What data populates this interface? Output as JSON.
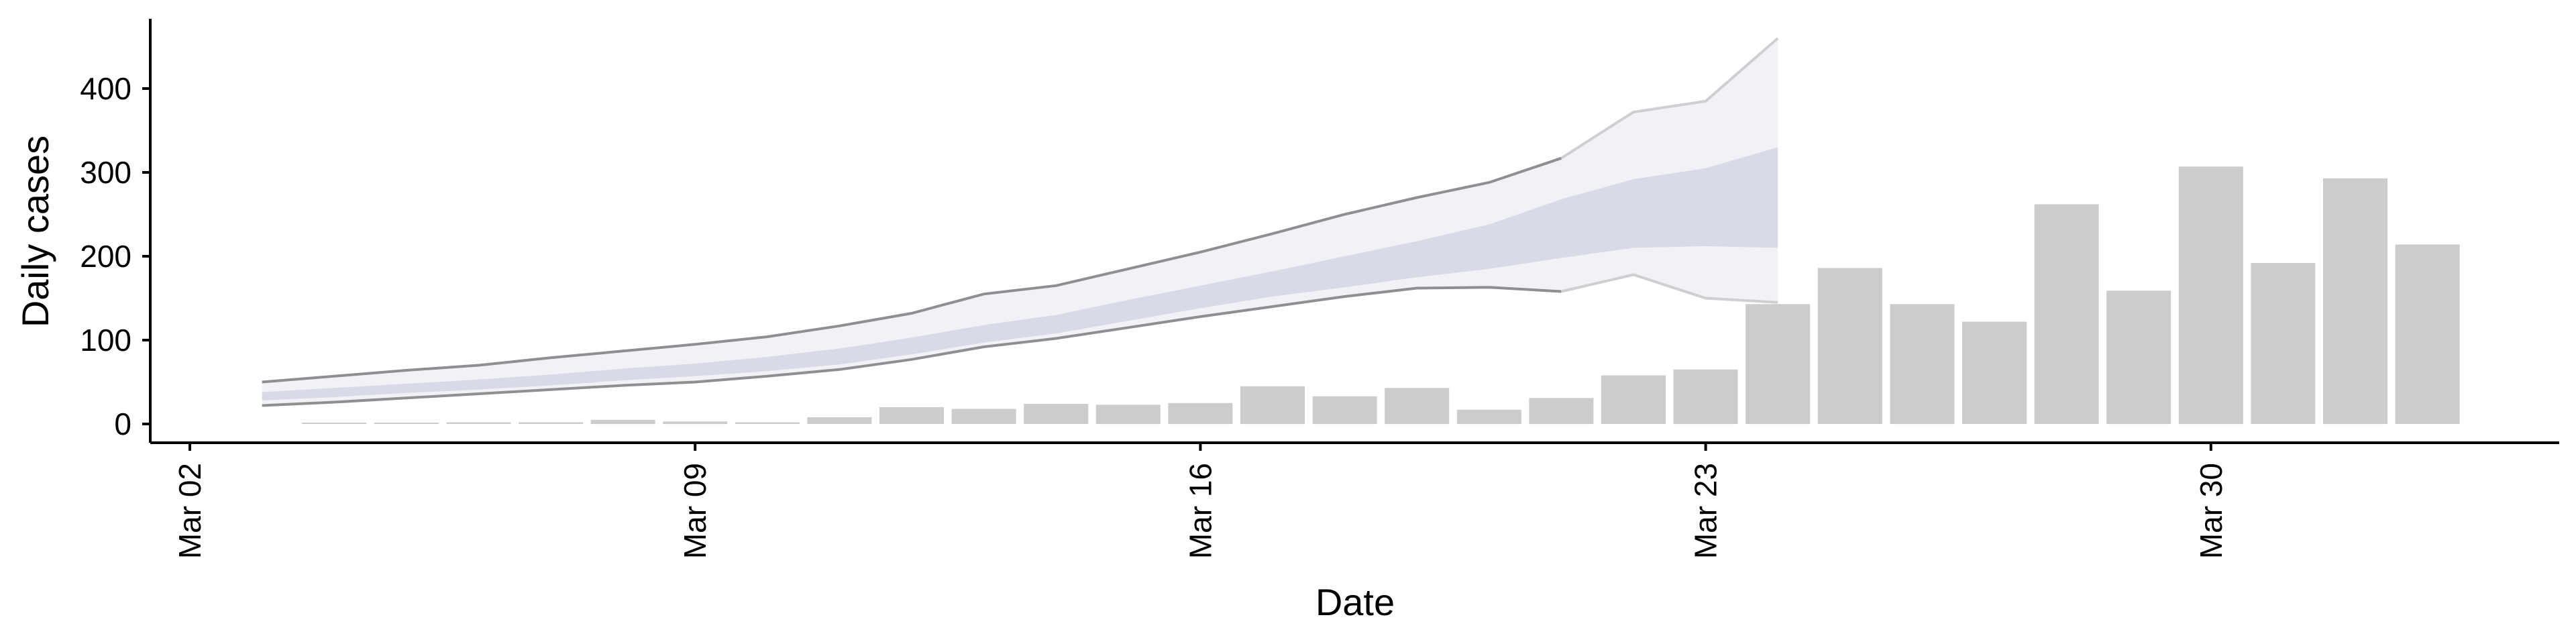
{
  "chart_data": {
    "type": "bar",
    "xlabel": "Date",
    "ylabel": "Daily cases",
    "xlim": [
      "2020-03-01",
      "2020-04-04"
    ],
    "ylim": [
      -20,
      480
    ],
    "x_ticks": [
      {
        "date": "2020-03-02",
        "label": "Mar 02"
      },
      {
        "date": "2020-03-09",
        "label": "Mar 09"
      },
      {
        "date": "2020-03-16",
        "label": "Mar 16"
      },
      {
        "date": "2020-03-23",
        "label": "Mar 23"
      },
      {
        "date": "2020-03-30",
        "label": "Mar 30"
      }
    ],
    "y_ticks": [
      0,
      100,
      200,
      300,
      400
    ],
    "bars": {
      "x": [
        "2020-03-04",
        "2020-03-05",
        "2020-03-06",
        "2020-03-07",
        "2020-03-08",
        "2020-03-09",
        "2020-03-10",
        "2020-03-11",
        "2020-03-12",
        "2020-03-13",
        "2020-03-14",
        "2020-03-15",
        "2020-03-16",
        "2020-03-17",
        "2020-03-18",
        "2020-03-19",
        "2020-03-20",
        "2020-03-21",
        "2020-03-22",
        "2020-03-23",
        "2020-03-24",
        "2020-03-25",
        "2020-03-26",
        "2020-03-27",
        "2020-03-28",
        "2020-03-29",
        "2020-03-30",
        "2020-03-31",
        "2020-04-01",
        "2020-04-02"
      ],
      "values": [
        1,
        0,
        2,
        2,
        5,
        3,
        2,
        8,
        20,
        18,
        24,
        23,
        25,
        45,
        33,
        43,
        17,
        31,
        58,
        65,
        143,
        186,
        143,
        122,
        262,
        159,
        307,
        192,
        293,
        214
      ],
      "color": "#cccccc"
    },
    "estimate": {
      "x": [
        "2020-03-03",
        "2020-03-04",
        "2020-03-05",
        "2020-03-06",
        "2020-03-07",
        "2020-03-08",
        "2020-03-09",
        "2020-03-10",
        "2020-03-11",
        "2020-03-12",
        "2020-03-13",
        "2020-03-14",
        "2020-03-15",
        "2020-03-16",
        "2020-03-17",
        "2020-03-18",
        "2020-03-19",
        "2020-03-20",
        "2020-03-21",
        "2020-03-22",
        "2020-03-23",
        "2020-03-24"
      ],
      "outer_upper": [
        50,
        57,
        64,
        70,
        79,
        87,
        95,
        104,
        117,
        132,
        155,
        165,
        185,
        205,
        227,
        250,
        270,
        288,
        317,
        372,
        385,
        460
      ],
      "outer_lower": [
        22,
        26,
        31,
        36,
        41,
        46,
        50,
        57,
        65,
        77,
        92,
        102,
        115,
        128,
        140,
        152,
        162,
        163,
        158,
        178,
        150,
        145
      ],
      "inner_upper": [
        38,
        43,
        48,
        53,
        59,
        66,
        72,
        80,
        90,
        103,
        118,
        130,
        148,
        165,
        182,
        200,
        218,
        238,
        268,
        292,
        305,
        330
      ],
      "inner_lower": [
        28,
        32,
        37,
        41,
        46,
        52,
        57,
        63,
        71,
        83,
        97,
        108,
        123,
        138,
        152,
        163,
        175,
        185,
        198,
        210,
        212,
        210
      ],
      "band_inner_color": "#d3d7e4",
      "band_outer_color": "#f0f0f4",
      "line_color": "#8e8e93",
      "recent_line_color": "#cfcfd3"
    },
    "grid": false,
    "legend": "none"
  }
}
